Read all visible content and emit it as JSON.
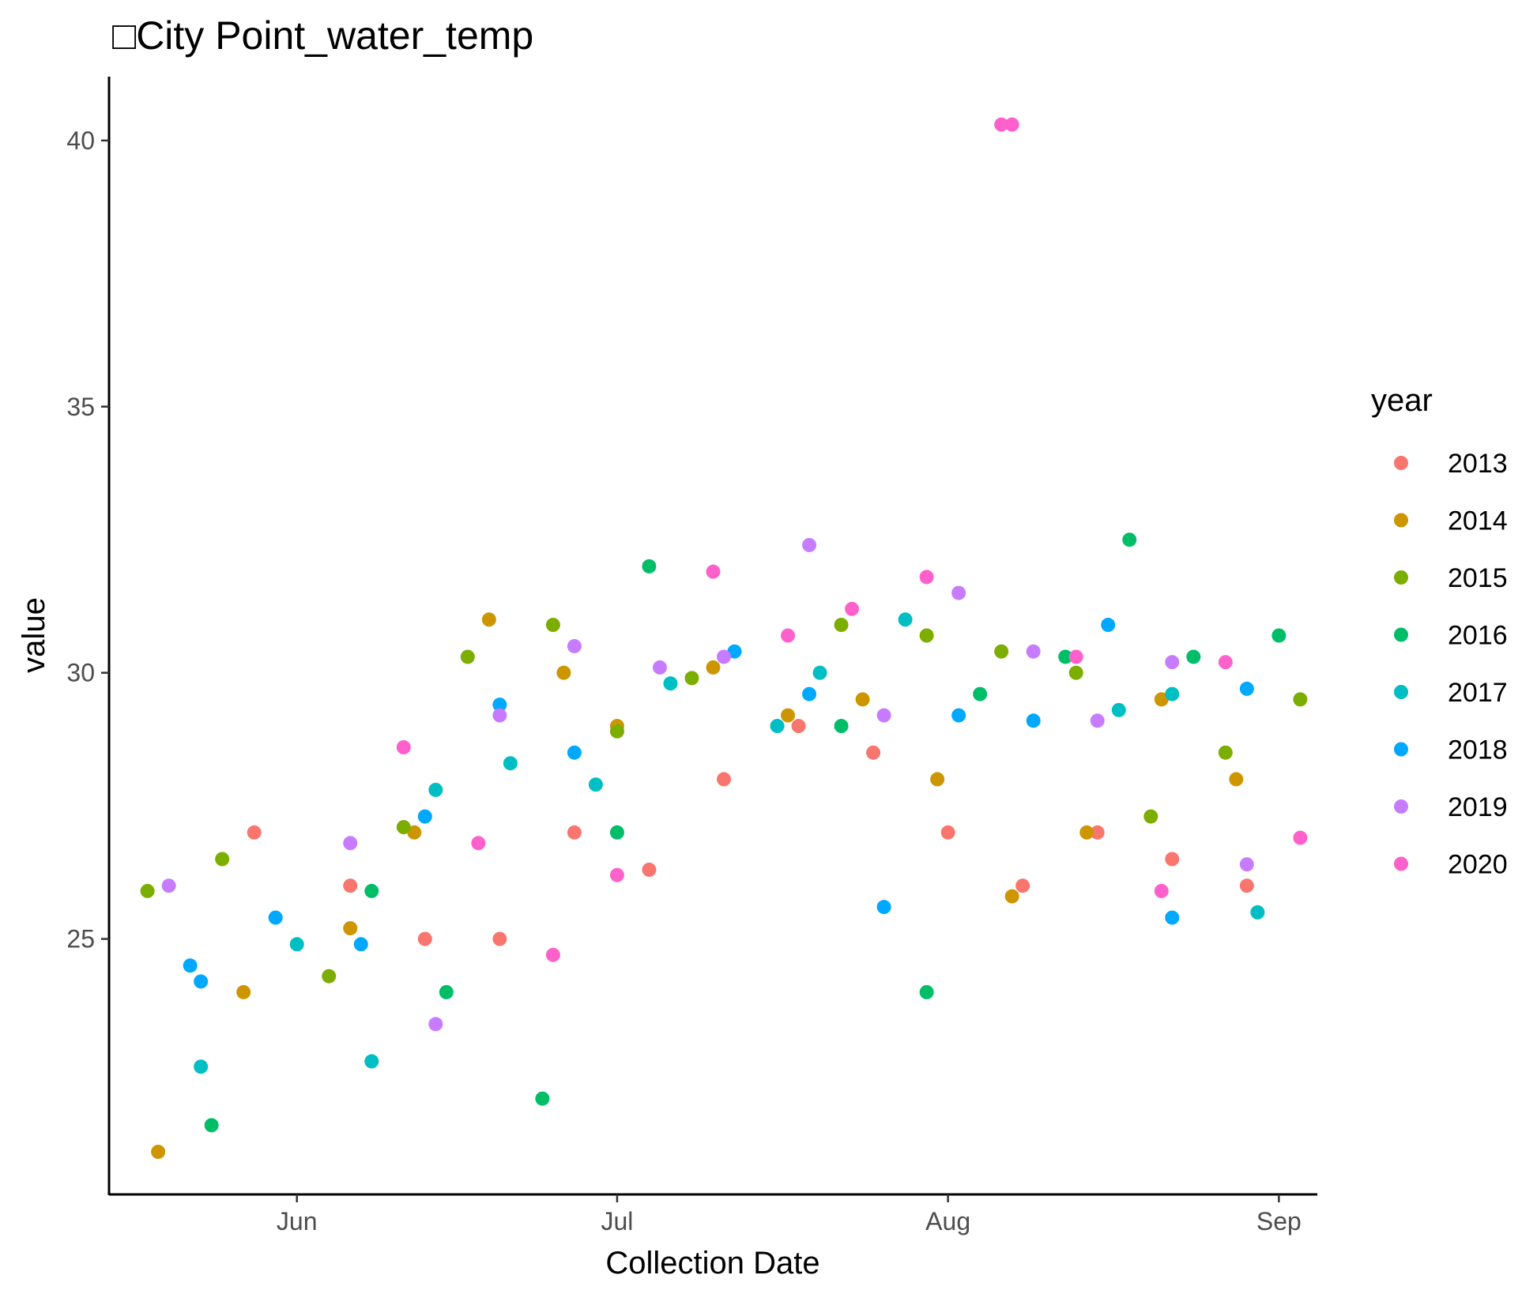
{
  "chart_data": {
    "type": "scatter",
    "title": "□City Point_water_temp",
    "xlabel": "Collection Date",
    "ylabel": "value",
    "x_ticks": [
      {
        "label": "Jun",
        "date": "06-01"
      },
      {
        "label": "Jul",
        "date": "07-01"
      },
      {
        "label": "Aug",
        "date": "08-01"
      },
      {
        "label": "Sep",
        "date": "09-01"
      }
    ],
    "xlim": [
      "05-16",
      "09-03"
    ],
    "y_ticks": [
      25,
      30,
      35,
      40
    ],
    "ylim": [
      20.2,
      41.2
    ],
    "grid": false,
    "legend": {
      "title": "year",
      "position": "right"
    },
    "series": [
      {
        "name": "2013",
        "color": "#F8766D",
        "points": [
          {
            "x": "05-28",
            "y": 27.0
          },
          {
            "x": "06-06",
            "y": 26.0
          },
          {
            "x": "06-13",
            "y": 25.0
          },
          {
            "x": "06-20",
            "y": 25.0
          },
          {
            "x": "06-27",
            "y": 27.0
          },
          {
            "x": "07-04",
            "y": 26.3
          },
          {
            "x": "07-11",
            "y": 28.0
          },
          {
            "x": "07-18",
            "y": 29.0
          },
          {
            "x": "07-25",
            "y": 28.5
          },
          {
            "x": "08-01",
            "y": 27.0
          },
          {
            "x": "08-08",
            "y": 26.0
          },
          {
            "x": "08-15",
            "y": 27.0
          },
          {
            "x": "08-22",
            "y": 26.5
          },
          {
            "x": "08-29",
            "y": 26.0
          }
        ]
      },
      {
        "name": "2014",
        "color": "#CD9600",
        "points": [
          {
            "x": "05-19",
            "y": 21.0
          },
          {
            "x": "05-27",
            "y": 24.0
          },
          {
            "x": "06-06",
            "y": 25.2
          },
          {
            "x": "06-12",
            "y": 27.0
          },
          {
            "x": "06-19",
            "y": 31.0
          },
          {
            "x": "06-26",
            "y": 30.0
          },
          {
            "x": "07-01",
            "y": 29.0
          },
          {
            "x": "07-10",
            "y": 30.1
          },
          {
            "x": "07-17",
            "y": 29.2
          },
          {
            "x": "07-24",
            "y": 29.5
          },
          {
            "x": "07-31",
            "y": 28.0
          },
          {
            "x": "08-07",
            "y": 25.8
          },
          {
            "x": "08-14",
            "y": 27.0
          },
          {
            "x": "08-21",
            "y": 29.5
          },
          {
            "x": "08-28",
            "y": 28.0
          }
        ]
      },
      {
        "name": "2015",
        "color": "#7CAE00",
        "points": [
          {
            "x": "05-18",
            "y": 25.9
          },
          {
            "x": "05-25",
            "y": 26.5
          },
          {
            "x": "06-04",
            "y": 24.3
          },
          {
            "x": "06-11",
            "y": 27.1
          },
          {
            "x": "06-17",
            "y": 30.3
          },
          {
            "x": "06-25",
            "y": 30.9
          },
          {
            "x": "07-01",
            "y": 28.9
          },
          {
            "x": "07-08",
            "y": 29.9
          },
          {
            "x": "07-22",
            "y": 30.9
          },
          {
            "x": "07-30",
            "y": 30.7
          },
          {
            "x": "08-06",
            "y": 30.4
          },
          {
            "x": "08-13",
            "y": 30.0
          },
          {
            "x": "08-20",
            "y": 27.3
          },
          {
            "x": "08-27",
            "y": 28.5
          },
          {
            "x": "09-03",
            "y": 29.5
          }
        ]
      },
      {
        "name": "2016",
        "color": "#00BE67",
        "points": [
          {
            "x": "05-24",
            "y": 21.5
          },
          {
            "x": "06-08",
            "y": 25.9
          },
          {
            "x": "06-15",
            "y": 24.0
          },
          {
            "x": "06-24",
            "y": 22.0
          },
          {
            "x": "07-01",
            "y": 27.0
          },
          {
            "x": "07-04",
            "y": 32.0
          },
          {
            "x": "07-22",
            "y": 29.0
          },
          {
            "x": "07-30",
            "y": 24.0
          },
          {
            "x": "08-04",
            "y": 29.6
          },
          {
            "x": "08-12",
            "y": 30.3
          },
          {
            "x": "08-18",
            "y": 32.5
          },
          {
            "x": "08-24",
            "y": 30.3
          },
          {
            "x": "09-01",
            "y": 30.7
          }
        ]
      },
      {
        "name": "2017",
        "color": "#00BFC4",
        "points": [
          {
            "x": "05-23",
            "y": 22.6
          },
          {
            "x": "06-01",
            "y": 24.9
          },
          {
            "x": "06-08",
            "y": 22.7
          },
          {
            "x": "06-14",
            "y": 27.8
          },
          {
            "x": "06-21",
            "y": 28.3
          },
          {
            "x": "06-29",
            "y": 27.9
          },
          {
            "x": "07-06",
            "y": 29.8
          },
          {
            "x": "07-16",
            "y": 29.0
          },
          {
            "x": "07-20",
            "y": 30.0
          },
          {
            "x": "07-28",
            "y": 31.0
          },
          {
            "x": "08-17",
            "y": 29.3
          },
          {
            "x": "08-22",
            "y": 29.6
          },
          {
            "x": "08-30",
            "y": 25.5
          }
        ]
      },
      {
        "name": "2018",
        "color": "#00A9FF",
        "points": [
          {
            "x": "05-22",
            "y": 24.5
          },
          {
            "x": "05-23",
            "y": 24.2
          },
          {
            "x": "05-30",
            "y": 25.4
          },
          {
            "x": "06-07",
            "y": 24.9
          },
          {
            "x": "06-13",
            "y": 27.3
          },
          {
            "x": "06-20",
            "y": 29.4
          },
          {
            "x": "06-27",
            "y": 28.5
          },
          {
            "x": "07-12",
            "y": 30.4
          },
          {
            "x": "07-19",
            "y": 29.6
          },
          {
            "x": "07-26",
            "y": 25.6
          },
          {
            "x": "08-02",
            "y": 29.2
          },
          {
            "x": "08-09",
            "y": 29.1
          },
          {
            "x": "08-16",
            "y": 30.9
          },
          {
            "x": "08-22",
            "y": 25.4
          },
          {
            "x": "08-29",
            "y": 29.7
          }
        ]
      },
      {
        "name": "2019",
        "color": "#C77CFF",
        "points": [
          {
            "x": "05-20",
            "y": 26.0
          },
          {
            "x": "06-06",
            "y": 26.8
          },
          {
            "x": "06-14",
            "y": 23.4
          },
          {
            "x": "06-20",
            "y": 29.2
          },
          {
            "x": "06-27",
            "y": 30.5
          },
          {
            "x": "07-05",
            "y": 30.1
          },
          {
            "x": "07-11",
            "y": 30.3
          },
          {
            "x": "07-19",
            "y": 32.4
          },
          {
            "x": "07-26",
            "y": 29.2
          },
          {
            "x": "08-02",
            "y": 31.5
          },
          {
            "x": "08-09",
            "y": 30.4
          },
          {
            "x": "08-15",
            "y": 29.1
          },
          {
            "x": "08-22",
            "y": 30.2
          },
          {
            "x": "08-29",
            "y": 26.4
          }
        ]
      },
      {
        "name": "2020",
        "color": "#FF61CC",
        "points": [
          {
            "x": "06-11",
            "y": 28.6
          },
          {
            "x": "06-18",
            "y": 26.8
          },
          {
            "x": "06-25",
            "y": 24.7
          },
          {
            "x": "07-01",
            "y": 26.2
          },
          {
            "x": "07-10",
            "y": 31.9
          },
          {
            "x": "07-17",
            "y": 30.7
          },
          {
            "x": "07-23",
            "y": 31.2
          },
          {
            "x": "07-30",
            "y": 31.8
          },
          {
            "x": "08-06",
            "y": 40.3
          },
          {
            "x": "08-07",
            "y": 40.3
          },
          {
            "x": "08-13",
            "y": 30.3
          },
          {
            "x": "08-21",
            "y": 25.9
          },
          {
            "x": "08-27",
            "y": 30.2
          },
          {
            "x": "09-03",
            "y": 26.9
          }
        ]
      }
    ]
  }
}
